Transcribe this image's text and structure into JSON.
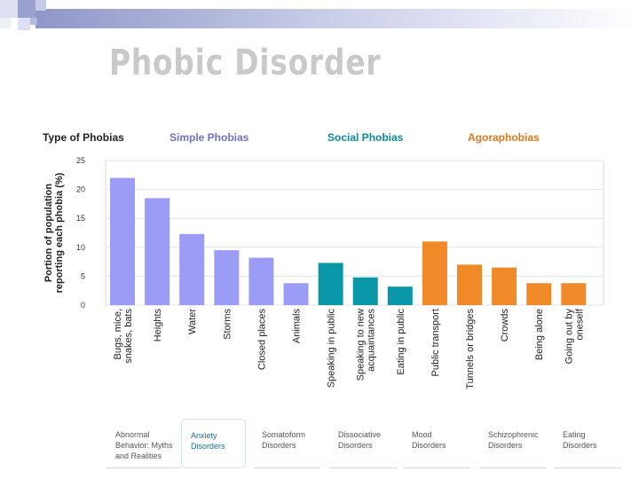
{
  "slide": {
    "title": "Phobic Disorder"
  },
  "headers": {
    "type_label": "Type of Phobias",
    "groups": [
      {
        "label": "Simple Phobias",
        "color": "#9b9cf5"
      },
      {
        "label": "Social Phobias",
        "color": "#0a97a8"
      },
      {
        "label": "Agoraphobias",
        "color": "#f08a28"
      }
    ]
  },
  "chart_data": {
    "type": "bar",
    "title": "",
    "xlabel": "",
    "ylabel": "Portion of population reporting each phobia (%)",
    "ylim": [
      0,
      25
    ],
    "yticks": [
      0,
      5,
      10,
      15,
      20,
      25
    ],
    "grid": true,
    "categories": [
      "Bugs, mice, snakes, bats",
      "Heights",
      "Water",
      "Storms",
      "Closed places",
      "Animals",
      "Speaking in public",
      "Speaking to new acquaintances",
      "Eating in public",
      "Public transport",
      "Tunnels or bridges",
      "Crowds",
      "Being alone",
      "Going out by oneself"
    ],
    "tick_label_lines": [
      [
        "Bugs, mice,",
        "snakes, bats"
      ],
      [
        "Heights"
      ],
      [
        "Water"
      ],
      [
        "Storms"
      ],
      [
        "Closed places"
      ],
      [
        "Animals"
      ],
      [
        "Speaking in public"
      ],
      [
        "Speaking to new",
        "acquaintances"
      ],
      [
        "Eating in public"
      ],
      [
        "Public transport"
      ],
      [
        "Tunnels or bridges"
      ],
      [
        "Crowds"
      ],
      [
        "Being alone"
      ],
      [
        "Going out by",
        "oneself"
      ]
    ],
    "series": [
      {
        "name": "Simple Phobias",
        "color": "#9b9cf5",
        "values": [
          22,
          18.5,
          12.3,
          9.5,
          8.2,
          3.8,
          null,
          null,
          null,
          null,
          null,
          null,
          null,
          null
        ]
      },
      {
        "name": "Social Phobias",
        "color": "#0a97a8",
        "values": [
          null,
          null,
          null,
          null,
          null,
          null,
          7.3,
          4.8,
          3.2,
          null,
          null,
          null,
          null,
          null
        ]
      },
      {
        "name": "Agoraphobias",
        "color": "#f08a28",
        "values": [
          null,
          null,
          null,
          null,
          null,
          null,
          null,
          null,
          null,
          11,
          7,
          6.5,
          3.8,
          3.8
        ]
      }
    ]
  },
  "tabs": [
    {
      "label": "Abnormal\nBehavior: Myths\nand Realities",
      "active": false
    },
    {
      "label": "Anxiety\nDisorders",
      "active": true
    },
    {
      "label": "Somatoform\nDisorders",
      "active": false
    },
    {
      "label": "Dissociative\nDisorders",
      "active": false
    },
    {
      "label": "Mood\nDisorders",
      "active": false
    },
    {
      "label": "Schizophrenic\nDisorders",
      "active": false
    },
    {
      "label": "Eating\nDisorders",
      "active": false
    }
  ]
}
